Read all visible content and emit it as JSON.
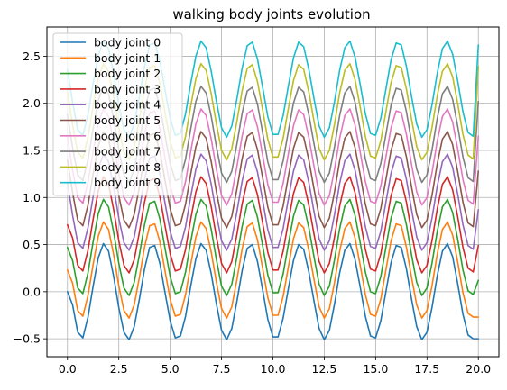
{
  "chart_data": {
    "type": "line",
    "title": "walking body joints evolution",
    "xlabel": "",
    "ylabel": "",
    "xlim": [
      -1.0,
      21.0
    ],
    "ylim": [
      -0.69,
      2.81
    ],
    "xticks": [
      0.0,
      2.5,
      5.0,
      7.5,
      10.0,
      12.5,
      15.0,
      17.5,
      20.0
    ],
    "xtick_labels": [
      "0.0",
      "2.5",
      "5.0",
      "7.5",
      "10.0",
      "12.5",
      "15.0",
      "17.5",
      "20.0"
    ],
    "yticks": [
      -0.5,
      0.0,
      0.5,
      1.0,
      1.5,
      2.0,
      2.5
    ],
    "ytick_labels": [
      "−0.5",
      "0.0",
      "0.5",
      "1.0",
      "1.5",
      "2.0",
      "2.5"
    ],
    "grid": true,
    "legend_position": "top-left",
    "x": [
      0.0,
      0.25,
      0.5,
      0.75,
      1.0,
      1.25,
      1.5,
      1.75,
      2.0,
      2.25,
      2.5,
      2.75,
      3.0,
      3.25,
      3.5,
      3.75,
      4.0,
      4.25,
      4.5,
      4.75,
      5.0,
      5.25,
      5.5,
      5.75,
      6.0,
      6.25,
      6.5,
      6.75,
      7.0,
      7.25,
      7.5,
      7.75,
      8.0,
      8.25,
      8.5,
      8.75,
      9.0,
      9.25,
      9.5,
      9.75,
      10.0,
      10.25,
      10.5,
      10.75,
      11.0,
      11.25,
      11.5,
      11.75,
      12.0,
      12.25,
      12.5,
      12.75,
      13.0,
      13.25,
      13.5,
      13.75,
      14.0,
      14.25,
      14.5,
      14.75,
      15.0,
      15.25,
      15.5,
      15.75,
      16.0,
      16.25,
      16.5,
      16.75,
      17.0,
      17.25,
      17.5,
      17.75,
      18.0,
      18.25,
      18.5,
      18.75,
      19.0,
      19.25,
      19.5,
      19.75,
      20.0
    ],
    "series": [
      {
        "name": "body joint 0",
        "color": "#1f77b4",
        "values": [
          0.0,
          -0.14,
          -0.43,
          -0.49,
          -0.27,
          0.06,
          0.36,
          0.51,
          0.43,
          0.16,
          -0.17,
          -0.43,
          -0.51,
          -0.37,
          -0.08,
          0.24,
          0.47,
          0.49,
          0.3,
          -0.01,
          -0.31,
          -0.49,
          -0.47,
          -0.26,
          0.06,
          0.35,
          0.51,
          0.44,
          0.19,
          -0.13,
          -0.41,
          -0.51,
          -0.39,
          -0.1,
          0.22,
          0.46,
          0.5,
          0.32,
          0.02,
          -0.29,
          -0.48,
          -0.48,
          -0.28,
          0.03,
          0.33,
          0.5,
          0.45,
          0.21,
          -0.1,
          -0.39,
          -0.51,
          -0.41,
          -0.13,
          0.2,
          0.44,
          0.51,
          0.34,
          0.05,
          -0.26,
          -0.47,
          -0.49,
          -0.31,
          0.0,
          0.31,
          0.49,
          0.47,
          0.24,
          -0.08,
          -0.37,
          -0.51,
          -0.43,
          -0.16,
          0.17,
          0.43,
          0.51,
          0.37,
          0.08,
          -0.24,
          -0.46,
          -0.5,
          -0.5
        ]
      },
      {
        "name": "body joint 1",
        "color": "#ff7f0e",
        "values": [
          0.23,
          0.09,
          -0.2,
          -0.26,
          -0.04,
          0.29,
          0.59,
          0.74,
          0.66,
          0.39,
          0.06,
          -0.2,
          -0.28,
          -0.14,
          0.15,
          0.47,
          0.7,
          0.72,
          0.53,
          0.22,
          -0.08,
          -0.26,
          -0.24,
          -0.03,
          0.29,
          0.58,
          0.74,
          0.67,
          0.42,
          0.1,
          -0.18,
          -0.28,
          -0.16,
          0.13,
          0.45,
          0.69,
          0.73,
          0.55,
          0.25,
          -0.06,
          -0.25,
          -0.25,
          -0.05,
          0.26,
          0.56,
          0.73,
          0.68,
          0.44,
          0.13,
          -0.16,
          -0.28,
          -0.18,
          0.1,
          0.43,
          0.67,
          0.74,
          0.57,
          0.28,
          -0.03,
          -0.24,
          -0.26,
          -0.08,
          0.23,
          0.54,
          0.72,
          0.7,
          0.47,
          0.15,
          -0.14,
          -0.28,
          -0.2,
          0.07,
          0.4,
          0.66,
          0.74,
          0.6,
          0.31,
          -0.01,
          -0.23,
          -0.27,
          -0.27
        ]
      },
      {
        "name": "body joint 2",
        "color": "#2ca02c",
        "values": [
          0.47,
          0.33,
          0.04,
          -0.02,
          0.2,
          0.53,
          0.83,
          0.98,
          0.9,
          0.63,
          0.3,
          0.04,
          -0.04,
          0.1,
          0.39,
          0.71,
          0.94,
          0.96,
          0.77,
          0.46,
          0.16,
          -0.02,
          0.0,
          0.21,
          0.53,
          0.82,
          0.98,
          0.91,
          0.66,
          0.34,
          0.06,
          -0.04,
          0.08,
          0.37,
          0.69,
          0.93,
          0.97,
          0.79,
          0.49,
          0.18,
          -0.01,
          -0.01,
          0.19,
          0.5,
          0.8,
          0.97,
          0.92,
          0.68,
          0.37,
          0.08,
          -0.04,
          0.06,
          0.34,
          0.67,
          0.91,
          0.98,
          0.81,
          0.52,
          0.21,
          0.0,
          -0.02,
          0.16,
          0.47,
          0.78,
          0.96,
          0.94,
          0.71,
          0.39,
          0.1,
          -0.04,
          0.04,
          0.31,
          0.64,
          0.9,
          0.98,
          0.84,
          0.55,
          0.23,
          0.01,
          -0.03,
          0.12
        ]
      },
      {
        "name": "body joint 3",
        "color": "#d62728",
        "values": [
          0.71,
          0.57,
          0.28,
          0.22,
          0.44,
          0.77,
          1.07,
          1.22,
          1.14,
          0.87,
          0.54,
          0.28,
          0.2,
          0.34,
          0.63,
          0.95,
          1.18,
          1.2,
          1.01,
          0.7,
          0.4,
          0.22,
          0.24,
          0.45,
          0.77,
          1.06,
          1.22,
          1.15,
          0.9,
          0.58,
          0.3,
          0.2,
          0.32,
          0.61,
          0.93,
          1.17,
          1.21,
          1.03,
          0.73,
          0.42,
          0.23,
          0.23,
          0.43,
          0.74,
          1.04,
          1.21,
          1.16,
          0.92,
          0.61,
          0.32,
          0.2,
          0.3,
          0.58,
          0.91,
          1.15,
          1.22,
          1.05,
          0.76,
          0.45,
          0.24,
          0.22,
          0.4,
          0.71,
          1.02,
          1.2,
          1.18,
          0.95,
          0.63,
          0.34,
          0.2,
          0.28,
          0.55,
          0.88,
          1.14,
          1.22,
          1.08,
          0.79,
          0.47,
          0.25,
          0.21,
          0.49
        ]
      },
      {
        "name": "body joint 4",
        "color": "#9467bd",
        "values": [
          1.16,
          0.81,
          0.52,
          0.46,
          0.68,
          1.01,
          1.31,
          1.46,
          1.38,
          1.11,
          0.78,
          0.52,
          0.44,
          0.58,
          0.87,
          1.19,
          1.42,
          1.44,
          1.25,
          0.94,
          0.64,
          0.46,
          0.48,
          0.69,
          1.01,
          1.3,
          1.46,
          1.39,
          1.14,
          0.82,
          0.54,
          0.44,
          0.56,
          0.85,
          1.17,
          1.41,
          1.45,
          1.27,
          0.97,
          0.66,
          0.47,
          0.47,
          0.67,
          0.98,
          1.28,
          1.45,
          1.4,
          1.16,
          0.85,
          0.56,
          0.44,
          0.54,
          0.82,
          1.15,
          1.39,
          1.46,
          1.29,
          1.0,
          0.69,
          0.48,
          0.46,
          0.64,
          0.95,
          1.26,
          1.44,
          1.42,
          1.19,
          0.87,
          0.58,
          0.44,
          0.52,
          0.79,
          1.12,
          1.38,
          1.46,
          1.32,
          1.03,
          0.71,
          0.49,
          0.45,
          0.87
        ]
      },
      {
        "name": "body joint 5",
        "color": "#8c564b",
        "values": [
          1.4,
          1.05,
          0.76,
          0.7,
          0.92,
          1.25,
          1.55,
          1.7,
          1.62,
          1.35,
          1.02,
          0.76,
          0.68,
          0.82,
          1.11,
          1.43,
          1.66,
          1.68,
          1.49,
          1.18,
          0.88,
          0.7,
          0.72,
          0.93,
          1.25,
          1.54,
          1.7,
          1.63,
          1.38,
          1.06,
          0.78,
          0.68,
          0.8,
          1.09,
          1.41,
          1.65,
          1.69,
          1.51,
          1.21,
          0.9,
          0.71,
          0.71,
          0.91,
          1.22,
          1.52,
          1.69,
          1.64,
          1.4,
          1.09,
          0.8,
          0.68,
          0.78,
          1.06,
          1.39,
          1.63,
          1.7,
          1.53,
          1.24,
          0.93,
          0.72,
          0.7,
          0.88,
          1.19,
          1.5,
          1.68,
          1.66,
          1.43,
          1.11,
          0.82,
          0.68,
          0.76,
          1.03,
          1.36,
          1.62,
          1.7,
          1.56,
          1.27,
          0.95,
          0.73,
          0.69,
          1.28
        ]
      },
      {
        "name": "body joint 6",
        "color": "#e377c2",
        "values": [
          1.64,
          1.29,
          1.0,
          0.94,
          1.16,
          1.49,
          1.79,
          1.94,
          1.86,
          1.59,
          1.26,
          1.0,
          0.92,
          1.06,
          1.35,
          1.67,
          1.9,
          1.92,
          1.73,
          1.42,
          1.12,
          0.94,
          0.96,
          1.17,
          1.49,
          1.78,
          1.94,
          1.87,
          1.62,
          1.3,
          1.02,
          0.92,
          1.04,
          1.33,
          1.65,
          1.89,
          1.93,
          1.75,
          1.45,
          1.14,
          0.95,
          0.95,
          1.15,
          1.46,
          1.76,
          1.93,
          1.88,
          1.64,
          1.33,
          1.04,
          0.92,
          1.02,
          1.3,
          1.63,
          1.87,
          1.94,
          1.77,
          1.48,
          1.17,
          0.96,
          0.94,
          1.12,
          1.43,
          1.74,
          1.92,
          1.9,
          1.67,
          1.35,
          1.06,
          0.92,
          1.0,
          1.27,
          1.6,
          1.86,
          1.94,
          1.8,
          1.51,
          1.19,
          0.97,
          0.93,
          1.65
        ]
      },
      {
        "name": "body joint 7",
        "color": "#7f7f7f",
        "values": [
          1.88,
          1.53,
          1.24,
          1.18,
          1.4,
          1.73,
          2.03,
          2.18,
          2.1,
          1.83,
          1.5,
          1.24,
          1.16,
          1.3,
          1.59,
          1.91,
          2.14,
          2.16,
          1.97,
          1.66,
          1.36,
          1.18,
          1.2,
          1.41,
          1.73,
          2.02,
          2.18,
          2.11,
          1.86,
          1.54,
          1.26,
          1.16,
          1.28,
          1.57,
          1.89,
          2.13,
          2.17,
          1.99,
          1.69,
          1.38,
          1.19,
          1.19,
          1.39,
          1.7,
          2.0,
          2.17,
          2.12,
          1.88,
          1.57,
          1.28,
          1.16,
          1.26,
          1.54,
          1.87,
          2.11,
          2.18,
          2.01,
          1.72,
          1.41,
          1.2,
          1.18,
          1.36,
          1.67,
          1.98,
          2.16,
          2.14,
          1.91,
          1.59,
          1.3,
          1.16,
          1.24,
          1.51,
          1.84,
          2.1,
          2.18,
          2.04,
          1.75,
          1.43,
          1.21,
          1.17,
          2.02
        ]
      },
      {
        "name": "body joint 8",
        "color": "#bcbd22",
        "values": [
          2.12,
          1.77,
          1.48,
          1.42,
          1.64,
          1.97,
          2.27,
          2.42,
          2.34,
          2.07,
          1.74,
          1.48,
          1.4,
          1.54,
          1.83,
          2.15,
          2.38,
          2.4,
          2.21,
          1.9,
          1.6,
          1.42,
          1.44,
          1.65,
          1.97,
          2.26,
          2.42,
          2.35,
          2.1,
          1.78,
          1.5,
          1.4,
          1.52,
          1.81,
          2.13,
          2.37,
          2.41,
          2.23,
          1.93,
          1.62,
          1.43,
          1.43,
          1.63,
          1.94,
          2.24,
          2.41,
          2.36,
          2.12,
          1.81,
          1.52,
          1.4,
          1.5,
          1.78,
          2.11,
          2.35,
          2.42,
          2.25,
          1.96,
          1.65,
          1.44,
          1.42,
          1.6,
          1.91,
          2.22,
          2.4,
          2.38,
          2.15,
          1.83,
          1.54,
          1.4,
          1.48,
          1.75,
          2.08,
          2.34,
          2.42,
          2.28,
          1.99,
          1.67,
          1.45,
          1.41,
          2.39
        ]
      },
      {
        "name": "body joint 9",
        "color": "#17becf",
        "values": [
          2.36,
          2.01,
          1.72,
          1.66,
          1.88,
          2.21,
          2.51,
          2.66,
          2.58,
          2.31,
          1.98,
          1.72,
          1.64,
          1.78,
          2.07,
          2.39,
          2.62,
          2.64,
          2.45,
          2.14,
          1.84,
          1.66,
          1.68,
          1.89,
          2.21,
          2.5,
          2.66,
          2.59,
          2.34,
          2.02,
          1.74,
          1.64,
          1.76,
          2.05,
          2.37,
          2.61,
          2.65,
          2.47,
          2.17,
          1.86,
          1.67,
          1.67,
          1.87,
          2.18,
          2.48,
          2.65,
          2.6,
          2.36,
          2.05,
          1.76,
          1.64,
          1.74,
          2.02,
          2.35,
          2.59,
          2.66,
          2.49,
          2.2,
          1.89,
          1.68,
          1.66,
          1.84,
          2.15,
          2.46,
          2.64,
          2.62,
          2.39,
          2.07,
          1.78,
          1.64,
          1.72,
          1.99,
          2.32,
          2.58,
          2.66,
          2.52,
          2.23,
          1.91,
          1.69,
          1.65,
          2.62
        ]
      }
    ]
  }
}
